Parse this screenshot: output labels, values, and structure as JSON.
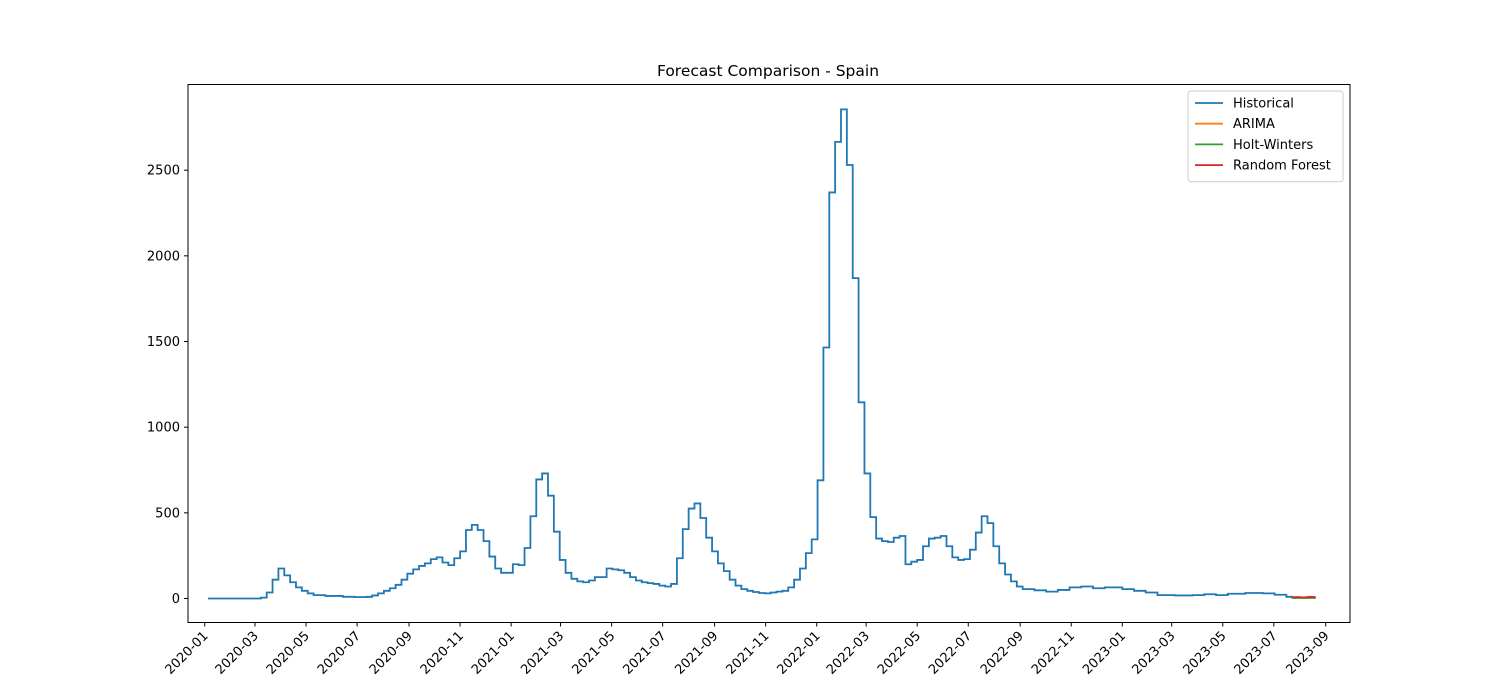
{
  "chart_data": {
    "type": "line",
    "title": "Forecast Comparison - Spain",
    "xlabel": "",
    "ylabel": "",
    "xlim": [
      "2019-12-12",
      "2023-09-30"
    ],
    "ylim": [
      -140,
      3000
    ],
    "y_ticks": [
      0,
      500,
      1000,
      1500,
      2000,
      2500
    ],
    "x_ticks": [
      "2020-01",
      "2020-03",
      "2020-05",
      "2020-07",
      "2020-09",
      "2020-11",
      "2021-01",
      "2021-03",
      "2021-05",
      "2021-07",
      "2021-09",
      "2021-11",
      "2022-01",
      "2022-03",
      "2022-05",
      "2022-07",
      "2022-09",
      "2022-11",
      "2023-01",
      "2023-03",
      "2023-05",
      "2023-07",
      "2023-09"
    ],
    "grid": false,
    "legend_position": "top-right",
    "series": [
      {
        "name": "Historical",
        "color": "#1f77b4",
        "step": true,
        "points": [
          [
            "2020-01-05",
            0
          ],
          [
            "2020-03-01",
            0
          ],
          [
            "2020-03-08",
            5
          ],
          [
            "2020-03-15",
            35
          ],
          [
            "2020-03-22",
            110
          ],
          [
            "2020-03-29",
            175
          ],
          [
            "2020-04-05",
            135
          ],
          [
            "2020-04-12",
            95
          ],
          [
            "2020-04-19",
            65
          ],
          [
            "2020-04-26",
            45
          ],
          [
            "2020-05-03",
            30
          ],
          [
            "2020-05-10",
            20
          ],
          [
            "2020-05-24",
            15
          ],
          [
            "2020-06-14",
            10
          ],
          [
            "2020-06-28",
            8
          ],
          [
            "2020-07-12",
            10
          ],
          [
            "2020-07-19",
            18
          ],
          [
            "2020-07-26",
            30
          ],
          [
            "2020-08-02",
            45
          ],
          [
            "2020-08-09",
            60
          ],
          [
            "2020-08-16",
            80
          ],
          [
            "2020-08-23",
            110
          ],
          [
            "2020-08-30",
            145
          ],
          [
            "2020-09-06",
            170
          ],
          [
            "2020-09-13",
            190
          ],
          [
            "2020-09-20",
            205
          ],
          [
            "2020-09-27",
            230
          ],
          [
            "2020-10-04",
            240
          ],
          [
            "2020-10-11",
            210
          ],
          [
            "2020-10-18",
            195
          ],
          [
            "2020-10-25",
            235
          ],
          [
            "2020-11-01",
            275
          ],
          [
            "2020-11-08",
            400
          ],
          [
            "2020-11-15",
            430
          ],
          [
            "2020-11-22",
            400
          ],
          [
            "2020-11-29",
            335
          ],
          [
            "2020-12-06",
            245
          ],
          [
            "2020-12-13",
            175
          ],
          [
            "2020-12-20",
            150
          ],
          [
            "2021-01-03",
            200
          ],
          [
            "2021-01-10",
            195
          ],
          [
            "2021-01-17",
            295
          ],
          [
            "2021-01-24",
            480
          ],
          [
            "2021-01-31",
            695
          ],
          [
            "2021-02-07",
            730
          ],
          [
            "2021-02-14",
            600
          ],
          [
            "2021-02-21",
            390
          ],
          [
            "2021-02-28",
            225
          ],
          [
            "2021-03-07",
            150
          ],
          [
            "2021-03-14",
            115
          ],
          [
            "2021-03-21",
            100
          ],
          [
            "2021-03-28",
            95
          ],
          [
            "2021-04-04",
            105
          ],
          [
            "2021-04-11",
            125
          ],
          [
            "2021-04-25",
            175
          ],
          [
            "2021-05-02",
            170
          ],
          [
            "2021-05-09",
            165
          ],
          [
            "2021-05-16",
            150
          ],
          [
            "2021-05-23",
            125
          ],
          [
            "2021-05-30",
            105
          ],
          [
            "2021-06-06",
            95
          ],
          [
            "2021-06-13",
            90
          ],
          [
            "2021-06-20",
            85
          ],
          [
            "2021-06-27",
            75
          ],
          [
            "2021-07-04",
            70
          ],
          [
            "2021-07-11",
            85
          ],
          [
            "2021-07-18",
            235
          ],
          [
            "2021-07-25",
            405
          ],
          [
            "2021-08-01",
            525
          ],
          [
            "2021-08-08",
            555
          ],
          [
            "2021-08-15",
            470
          ],
          [
            "2021-08-22",
            355
          ],
          [
            "2021-08-29",
            275
          ],
          [
            "2021-09-05",
            205
          ],
          [
            "2021-09-12",
            160
          ],
          [
            "2021-09-19",
            110
          ],
          [
            "2021-09-26",
            75
          ],
          [
            "2021-10-03",
            55
          ],
          [
            "2021-10-10",
            45
          ],
          [
            "2021-10-17",
            38
          ],
          [
            "2021-10-24",
            32
          ],
          [
            "2021-10-31",
            30
          ],
          [
            "2021-11-07",
            35
          ],
          [
            "2021-11-14",
            40
          ],
          [
            "2021-11-21",
            45
          ],
          [
            "2021-11-28",
            65
          ],
          [
            "2021-12-05",
            110
          ],
          [
            "2021-12-12",
            175
          ],
          [
            "2021-12-19",
            265
          ],
          [
            "2021-12-26",
            345
          ],
          [
            "2022-01-02",
            690
          ],
          [
            "2022-01-09",
            1465
          ],
          [
            "2022-01-16",
            2370
          ],
          [
            "2022-01-23",
            2665
          ],
          [
            "2022-01-30",
            2855
          ],
          [
            "2022-02-06",
            2530
          ],
          [
            "2022-02-13",
            1870
          ],
          [
            "2022-02-20",
            1145
          ],
          [
            "2022-02-27",
            730
          ],
          [
            "2022-03-06",
            475
          ],
          [
            "2022-03-13",
            350
          ],
          [
            "2022-03-20",
            335
          ],
          [
            "2022-03-27",
            330
          ],
          [
            "2022-04-03",
            355
          ],
          [
            "2022-04-10",
            365
          ],
          [
            "2022-04-17",
            200
          ],
          [
            "2022-04-24",
            215
          ],
          [
            "2022-05-01",
            225
          ],
          [
            "2022-05-08",
            305
          ],
          [
            "2022-05-15",
            350
          ],
          [
            "2022-05-22",
            355
          ],
          [
            "2022-05-29",
            365
          ],
          [
            "2022-06-05",
            305
          ],
          [
            "2022-06-12",
            240
          ],
          [
            "2022-06-19",
            225
          ],
          [
            "2022-06-26",
            230
          ],
          [
            "2022-07-03",
            285
          ],
          [
            "2022-07-10",
            385
          ],
          [
            "2022-07-17",
            480
          ],
          [
            "2022-07-24",
            440
          ],
          [
            "2022-07-31",
            305
          ],
          [
            "2022-08-07",
            205
          ],
          [
            "2022-08-14",
            140
          ],
          [
            "2022-08-21",
            100
          ],
          [
            "2022-08-28",
            70
          ],
          [
            "2022-09-04",
            55
          ],
          [
            "2022-09-18",
            48
          ],
          [
            "2022-10-02",
            40
          ],
          [
            "2022-10-16",
            50
          ],
          [
            "2022-10-30",
            65
          ],
          [
            "2022-11-13",
            70
          ],
          [
            "2022-11-27",
            60
          ],
          [
            "2022-12-11",
            65
          ],
          [
            "2023-01-01",
            55
          ],
          [
            "2023-01-15",
            45
          ],
          [
            "2023-01-29",
            35
          ],
          [
            "2023-02-12",
            20
          ],
          [
            "2023-03-05",
            18
          ],
          [
            "2023-03-26",
            20
          ],
          [
            "2023-04-09",
            25
          ],
          [
            "2023-04-23",
            20
          ],
          [
            "2023-05-07",
            28
          ],
          [
            "2023-05-28",
            32
          ],
          [
            "2023-06-18",
            30
          ],
          [
            "2023-07-02",
            22
          ],
          [
            "2023-07-16",
            10
          ],
          [
            "2023-07-23",
            5
          ],
          [
            "2023-07-30",
            3
          ]
        ]
      },
      {
        "name": "ARIMA",
        "color": "#ff7f0e",
        "step": false,
        "points": [
          [
            "2023-07-23",
            4
          ],
          [
            "2023-07-30",
            5
          ],
          [
            "2023-08-06",
            5
          ],
          [
            "2023-08-13",
            5
          ],
          [
            "2023-08-20",
            5
          ]
        ]
      },
      {
        "name": "Holt-Winters",
        "color": "#2ca02c",
        "step": false,
        "points": [
          [
            "2023-07-23",
            3
          ],
          [
            "2023-07-30",
            3
          ],
          [
            "2023-08-06",
            3
          ],
          [
            "2023-08-13",
            3
          ],
          [
            "2023-08-20",
            3
          ]
        ]
      },
      {
        "name": "Random Forest",
        "color": "#d62728",
        "step": false,
        "points": [
          [
            "2023-07-23",
            7
          ],
          [
            "2023-07-30",
            9
          ],
          [
            "2023-08-06",
            6
          ],
          [
            "2023-08-13",
            10
          ],
          [
            "2023-08-20",
            8
          ]
        ]
      }
    ]
  }
}
